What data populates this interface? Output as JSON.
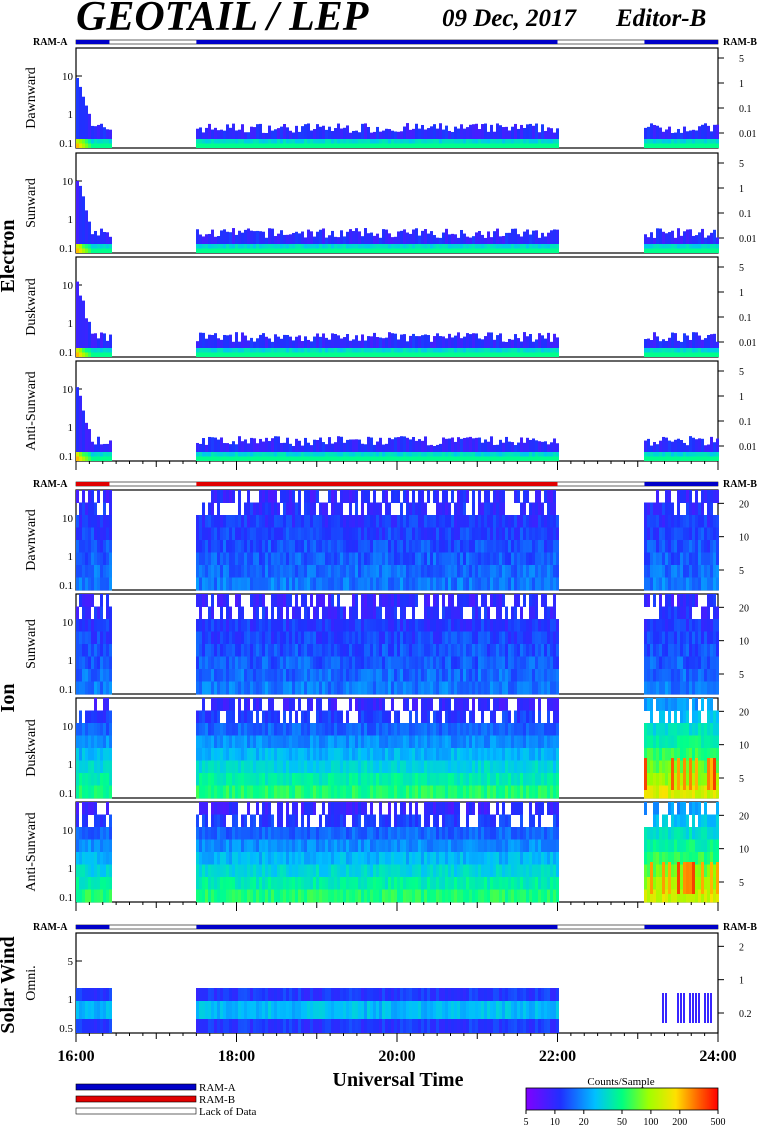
{
  "title": "GEOTAIL / LEP",
  "date": "09 Dec, 2017",
  "editor": "Editor-B",
  "ram_a": "RAM-A",
  "ram_b": "RAM-B",
  "xlabel": "Universal Time",
  "legend": {
    "ram_a": "RAM-A",
    "ram_b": "RAM-B",
    "lack": "Lack of Data"
  },
  "colorbar": {
    "title": "Counts/Sample",
    "ticks": [
      "5",
      "10",
      "20",
      "50",
      "100",
      "200",
      "500"
    ]
  },
  "colors": {
    "ram_a": "#0000c8",
    "ram_b": "#e00000"
  },
  "groups": [
    {
      "label": "Electron",
      "panels": [
        "Dawnward",
        "Sunward",
        "Duskward",
        "Anti-Sunward"
      ]
    },
    {
      "label": "Ion",
      "panels": [
        "Dawnward",
        "Sunward",
        "Duskward",
        "Anti-Sunward"
      ]
    },
    {
      "label": "Solar Wind",
      "panels": [
        "Omni."
      ]
    }
  ],
  "chart_data": {
    "type": "heatmap",
    "xlabel": "Universal Time",
    "x_range": [
      "16:00",
      "24:00"
    ],
    "x_ticks": [
      "16:00",
      "18:00",
      "20:00",
      "22:00",
      "24:00"
    ],
    "data_intervals": [
      [
        "16:00",
        "16:25"
      ],
      [
        "17:30",
        "22:00"
      ],
      [
        "23:05",
        "24:00"
      ]
    ],
    "electron": {
      "left_ticks": [
        "10",
        "1",
        "0.1"
      ],
      "right_ticks": [
        "5",
        "1",
        "0.1",
        "0.01"
      ],
      "mode_bar": "RAM-A"
    },
    "ion": {
      "left_ticks": [
        "10",
        "1",
        "0.1"
      ],
      "right_ticks": [
        "20",
        "10",
        "5"
      ],
      "mode_bar": "RAM-B, RAM-A after 23:05"
    },
    "solar_wind": {
      "left_ticks": [
        "5",
        "1",
        "0.5"
      ],
      "right_ticks": [
        "2",
        "1",
        "0.2"
      ],
      "mode_bar": "RAM-A"
    },
    "colorbar_range": [
      5,
      500
    ]
  }
}
